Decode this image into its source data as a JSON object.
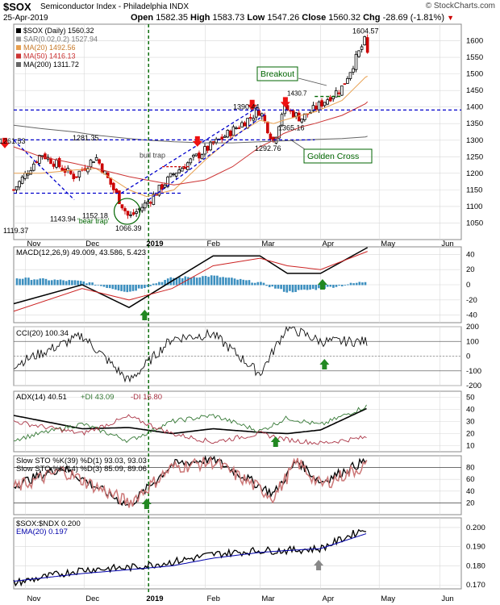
{
  "header": {
    "symbol": "$SOX",
    "name": "Semiconductor Index - Philadelphia INDX",
    "attribution": "© StockCharts.com",
    "date": "25-Apr-2019",
    "open_label": "Open",
    "open": "1582.35",
    "high_label": "High",
    "high": "1583.73",
    "low_label": "Low",
    "low": "1547.26",
    "close_label": "Close",
    "close": "1560.32",
    "chg_label": "Chg",
    "chg": "-28.69 (-1.81%)",
    "chg_icon": "down-triangle-icon"
  },
  "colors": {
    "price_up": "#000000",
    "price_down": "#cc0000",
    "sar": "#999999",
    "ma20": "#e8a050",
    "ma50": "#cc3333",
    "ma200": "#666666",
    "blue_line": "#0000cc",
    "green_line": "#006600",
    "grid": "#d8d8d8",
    "macd_hist": "#3c8fbf",
    "cci_fill": "#556655",
    "arrow_red": "#ee1111",
    "arrow_green": "#228822",
    "arrow_gray": "#888888"
  },
  "x_axis": {
    "labels": [
      "Nov",
      "Dec",
      "2019",
      "Feb",
      "Mar",
      "Apr",
      "May",
      "Jun"
    ]
  },
  "chart_data": [
    {
      "type": "candlestick",
      "panel": "price",
      "legend": [
        "$SOX (Daily) 1560.32",
        "SAR(0.02,0.2) 1527.94",
        "MA(20) 1492.56",
        "MA(50) 1416.13",
        "MA(200) 1311.72"
      ],
      "ylim": [
        1000,
        1650
      ],
      "yticks": [
        "1050",
        "1100",
        "1150",
        "1200",
        "1250",
        "1300",
        "1350",
        "1400",
        "1450",
        "1500",
        "1550",
        "1600"
      ],
      "x_dates": [
        "Oct 26",
        "Nov 9",
        "Nov 26",
        "Dec 7",
        "Dec 24",
        "Jan 2",
        "Jan 16",
        "Feb 1",
        "Feb 15",
        "Mar 1",
        "Mar 8",
        "Mar 13",
        "Mar 22",
        "Mar 29",
        "Apr 12",
        "Apr 24",
        "Apr 25"
      ],
      "close_values": [
        1150,
        1260,
        1190,
        1250,
        1066,
        1110,
        1200,
        1270,
        1330,
        1390,
        1293,
        1400,
        1365,
        1395,
        1460,
        1605,
        1560
      ],
      "series": [
        {
          "name": "MA(20)",
          "values": [
            1200,
            1200,
            1210,
            1215,
            1150,
            1130,
            1150,
            1240,
            1310,
            1360,
            1350,
            1360,
            1375,
            1385,
            1420,
            1490,
            1493
          ]
        },
        {
          "name": "MA(50)",
          "values": [
            1280,
            1250,
            1230,
            1215,
            1190,
            1180,
            1165,
            1180,
            1220,
            1280,
            1300,
            1320,
            1340,
            1350,
            1375,
            1410,
            1416
          ]
        },
        {
          "name": "MA(200)",
          "values": [
            1345,
            1335,
            1325,
            1315,
            1305,
            1300,
            1295,
            1292,
            1292,
            1295,
            1297,
            1298,
            1300,
            1302,
            1305,
            1310,
            1312
          ]
        }
      ],
      "annotations": [
        {
          "text": "1281.35"
        },
        {
          "text": "1261.53"
        },
        {
          "text": "1119.37"
        },
        {
          "text": "1143.94"
        },
        {
          "text": "1152.18"
        },
        {
          "text": "1066.39"
        },
        {
          "text": "'bear trap'"
        },
        {
          "text": "bull trap"
        },
        {
          "text": "1390.44"
        },
        {
          "text": "1365.16"
        },
        {
          "text": "1292.76"
        },
        {
          "text": "1604.57"
        },
        {
          "text": "Breakout"
        },
        {
          "text": "Golden Cross"
        },
        {
          "text": "1430.7"
        }
      ]
    },
    {
      "type": "line",
      "panel": "macd",
      "legend": [
        "MACD(12,26,9) 49.009, 43.586, 5.423"
      ],
      "ylim": [
        -50,
        50
      ],
      "yticks": [
        "40",
        "20",
        "0",
        "-20",
        "-40"
      ],
      "x_dates": [
        "Oct 26",
        "Nov 30",
        "Dec 24",
        "Jan 15",
        "Feb 5",
        "Mar 1",
        "Mar 15",
        "Apr 1",
        "Apr 25"
      ],
      "series": [
        {
          "name": "MACD",
          "values": [
            -25,
            0,
            -30,
            5,
            38,
            38,
            15,
            15,
            49
          ]
        },
        {
          "name": "Signal",
          "values": [
            -35,
            -5,
            -20,
            -5,
            25,
            35,
            25,
            20,
            44
          ]
        }
      ]
    },
    {
      "type": "line",
      "panel": "cci",
      "legend": [
        "CCI(20) 100.34"
      ],
      "ylim": [
        -200,
        200
      ],
      "yticks": [
        "200",
        "100",
        "0",
        "-100",
        "-200"
      ],
      "x_dates": [
        "Oct 26",
        "Nov 30",
        "Dec 24",
        "Jan 15",
        "Feb 5",
        "Mar 1",
        "Mar 15",
        "Apr 1",
        "Apr 25"
      ],
      "series": [
        {
          "name": "CCI(20)",
          "values": [
            -60,
            140,
            -170,
            120,
            150,
            -120,
            200,
            100,
            100
          ]
        }
      ]
    },
    {
      "type": "line",
      "panel": "adx",
      "legend": [
        "ADX(14) 40.51",
        "+DI 43.09",
        "-DI 16.80"
      ],
      "ylim": [
        5,
        55
      ],
      "yticks": [
        "50",
        "40",
        "30",
        "20",
        "10"
      ],
      "x_dates": [
        "Oct 26",
        "Nov 30",
        "Dec 24",
        "Jan 15",
        "Feb 5",
        "Mar 1",
        "Mar 15",
        "Apr 1",
        "Apr 25"
      ],
      "series": [
        {
          "name": "ADX(14)",
          "values": [
            35,
            24,
            25,
            20,
            24,
            21,
            20,
            23,
            41
          ]
        },
        {
          "name": "+DI",
          "values": [
            15,
            28,
            14,
            30,
            35,
            22,
            33,
            27,
            43
          ]
        },
        {
          "name": "-DI",
          "values": [
            30,
            20,
            34,
            20,
            13,
            20,
            15,
            12,
            17
          ]
        }
      ]
    },
    {
      "type": "line",
      "panel": "sto",
      "legend": [
        "Slow STO %K(39) %D(1) 93.03, 93.03",
        "Slow STO %K(14) %D(3) 85.09, 89.06"
      ],
      "ylim": [
        0,
        100
      ],
      "yticks": [
        "80",
        "60",
        "40",
        "20"
      ],
      "x_dates": [
        "Oct 26",
        "Nov 20",
        "Dec 24",
        "Jan 15",
        "Feb 5",
        "Mar 8",
        "Mar 20",
        "Apr 1",
        "Apr 25"
      ],
      "series": [
        {
          "name": "%K(39)",
          "values": [
            50,
            80,
            15,
            85,
            95,
            35,
            92,
            55,
            93
          ]
        },
        {
          "name": "%K(14)",
          "values": [
            45,
            75,
            20,
            80,
            90,
            30,
            90,
            50,
            85
          ]
        }
      ]
    },
    {
      "type": "line",
      "panel": "ratio",
      "legend": [
        "$SOX:$NDX 0.200",
        "EMA(20) 0.197"
      ],
      "ylim": [
        0.168,
        0.205
      ],
      "yticks": [
        "0.200",
        "0.190",
        "0.180",
        "0.170"
      ],
      "x_dates": [
        "Oct 26",
        "Nov 30",
        "Dec 24",
        "Jan 15",
        "Feb 5",
        "Mar 1",
        "Mar 15",
        "Apr 1",
        "Apr 25"
      ],
      "series": [
        {
          "name": "$SOX:$NDX",
          "values": [
            0.171,
            0.178,
            0.179,
            0.182,
            0.186,
            0.188,
            0.188,
            0.189,
            0.2
          ]
        },
        {
          "name": "EMA(20)",
          "values": [
            0.172,
            0.176,
            0.178,
            0.18,
            0.184,
            0.187,
            0.188,
            0.189,
            0.197
          ]
        }
      ]
    }
  ]
}
